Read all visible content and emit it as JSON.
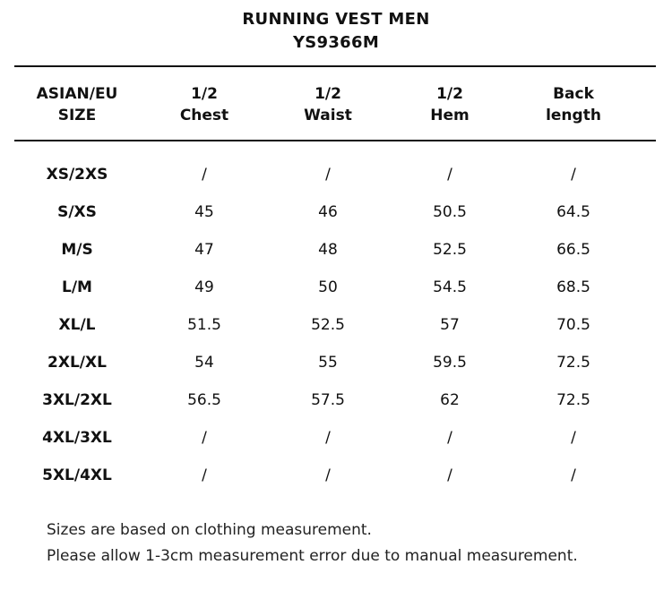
{
  "title": {
    "line1": "RUNNING VEST MEN",
    "line2": "YS9366M"
  },
  "table": {
    "headers": [
      {
        "line1": "ASIAN/EU",
        "line2": "SIZE"
      },
      {
        "line1": "1/2",
        "line2": "Chest"
      },
      {
        "line1": "1/2",
        "line2": "Waist"
      },
      {
        "line1": "1/2",
        "line2": "Hem"
      },
      {
        "line1": "Back",
        "line2": "length"
      }
    ],
    "rows": [
      [
        "XS/2XS",
        "/",
        "/",
        "/",
        "/"
      ],
      [
        "S/XS",
        "45",
        "46",
        "50.5",
        "64.5"
      ],
      [
        "M/S",
        "47",
        "48",
        "52.5",
        "66.5"
      ],
      [
        "L/M",
        "49",
        "50",
        "54.5",
        "68.5"
      ],
      [
        "XL/L",
        "51.5",
        "52.5",
        "57",
        "70.5"
      ],
      [
        "2XL/XL",
        "54",
        "55",
        "59.5",
        "72.5"
      ],
      [
        "3XL/2XL",
        "56.5",
        "57.5",
        "62",
        "72.5"
      ],
      [
        "4XL/3XL",
        "/",
        "/",
        "/",
        "/"
      ],
      [
        "5XL/4XL",
        "/",
        "/",
        "/",
        "/"
      ]
    ]
  },
  "notes": [
    "Sizes are based on clothing measurement.",
    "Please allow 1-3cm measurement error due to manual measurement."
  ]
}
